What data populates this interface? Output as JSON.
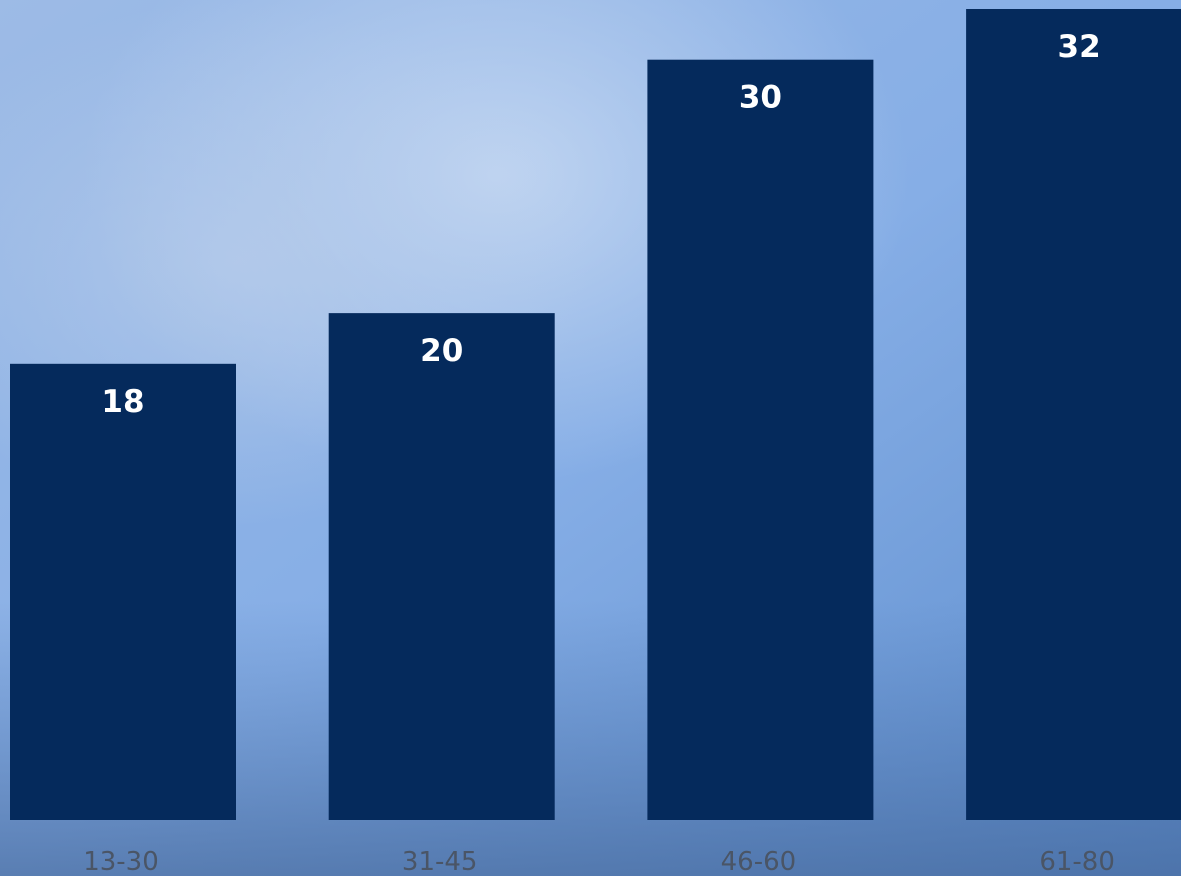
{
  "chart_data": {
    "type": "bar",
    "categories": [
      "13-30",
      "31-45",
      "46-60",
      "61-80"
    ],
    "values": [
      18,
      20,
      30,
      32
    ],
    "color": "#052a5c",
    "ylim": [
      0,
      32
    ]
  }
}
